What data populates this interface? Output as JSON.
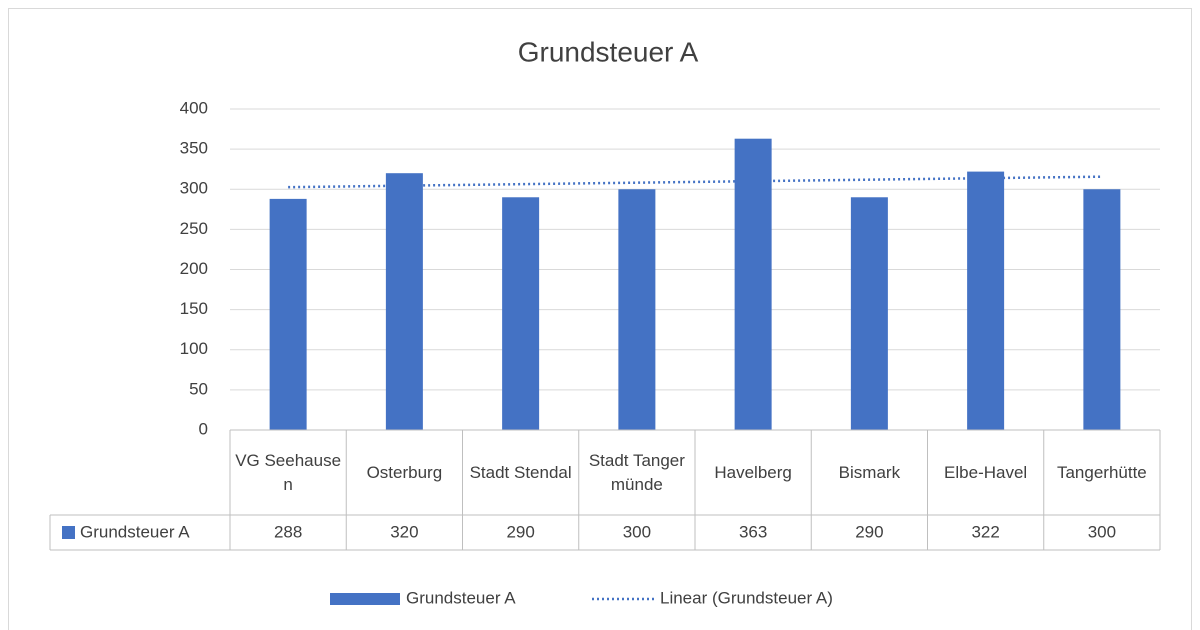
{
  "chart_data": {
    "type": "bar",
    "title": "Grundsteuer A",
    "categories": [
      "VG Seehausen",
      "Osterburg",
      "Stadt Stendal",
      "Stadt Tangermünde",
      "Havelberg",
      "Bismark",
      "Elbe-Havel",
      "Tangerhütte"
    ],
    "series": [
      {
        "name": "Grundsteuer A",
        "color": "#4472c4",
        "values": [
          288,
          320,
          290,
          300,
          363,
          290,
          322,
          300
        ]
      }
    ],
    "trendline": {
      "name": "Linear (Grundsteuer A)",
      "color": "#4472c4",
      "type": "linear"
    },
    "ylim": [
      0,
      400
    ],
    "yticks": [
      0,
      50,
      100,
      150,
      200,
      250,
      300,
      350,
      400
    ],
    "grid": true,
    "data_table": true,
    "legend": "bottom"
  }
}
